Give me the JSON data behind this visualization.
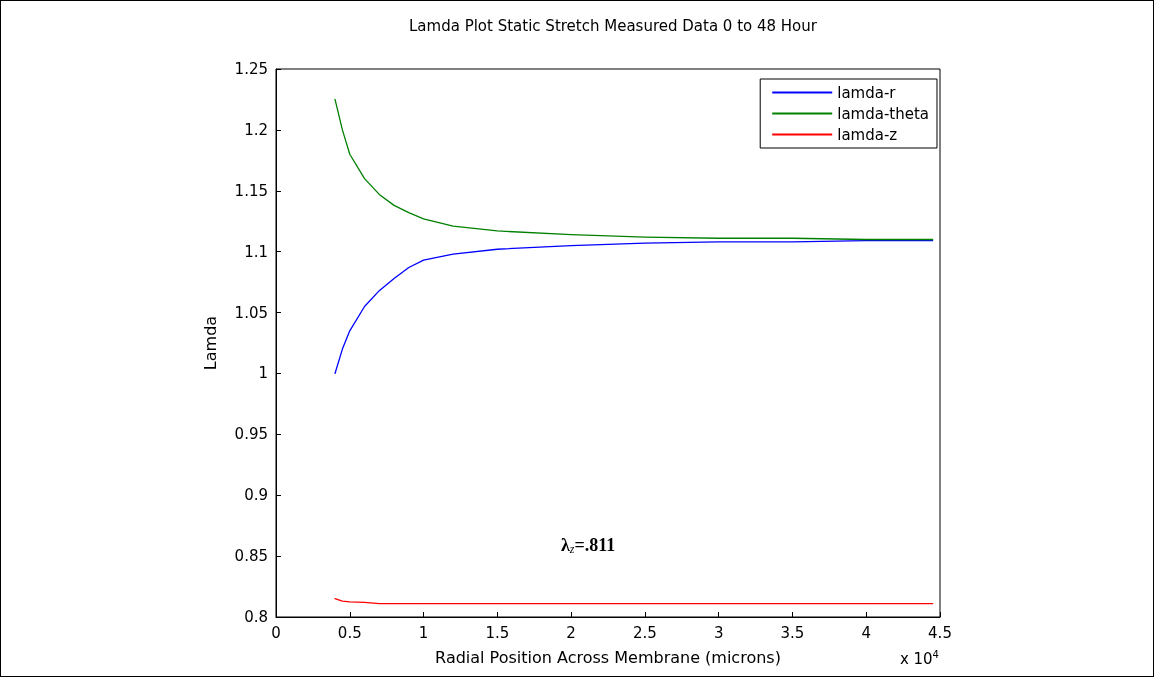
{
  "chart_data": {
    "type": "line",
    "title": "Lamda Plot Static Stretch Measured Data 0 to 48 Hour",
    "xlabel": "Radial Position Across Membrane (microns)",
    "ylabel": "Lamda",
    "x": [
      0.4,
      0.45,
      0.5,
      0.6,
      0.7,
      0.8,
      0.9,
      1.0,
      1.2,
      1.5,
      2,
      2.5,
      3,
      3.5,
      4,
      4.45
    ],
    "series": [
      {
        "name": "lamda-r",
        "color": "#0000ff",
        "values": [
          1.0,
          1.02,
          1.035,
          1.055,
          1.068,
          1.078,
          1.087,
          1.093,
          1.098,
          1.102,
          1.105,
          1.107,
          1.108,
          1.108,
          1.109,
          1.109
        ]
      },
      {
        "name": "lamda-theta",
        "color": "#008000",
        "values": [
          1.225,
          1.2,
          1.18,
          1.16,
          1.147,
          1.138,
          1.132,
          1.127,
          1.121,
          1.117,
          1.114,
          1.112,
          1.111,
          1.111,
          1.11,
          1.11
        ]
      },
      {
        "name": "lamda-z",
        "color": "#ff0000",
        "values": [
          0.815,
          0.813,
          0.8125,
          0.812,
          0.811,
          0.811,
          0.811,
          0.811,
          0.811,
          0.811,
          0.811,
          0.811,
          0.811,
          0.811,
          0.811,
          0.811
        ]
      }
    ],
    "xlim": [
      0,
      4.5
    ],
    "xticks": [
      0,
      0.5,
      1,
      1.5,
      2,
      2.5,
      3,
      3.5,
      4,
      4.5
    ],
    "ylim": [
      0.8,
      1.25
    ],
    "yticks": [
      0.8,
      0.85,
      0.9,
      0.95,
      1,
      1.05,
      1.1,
      1.15,
      1.2,
      1.25
    ],
    "annotations": [
      "λ$_{z}$=.811",
      "x 10$^{4}$"
    ],
    "legend": "top right",
    "grid": false,
    "marker": "none",
    "line_style": "solid"
  }
}
